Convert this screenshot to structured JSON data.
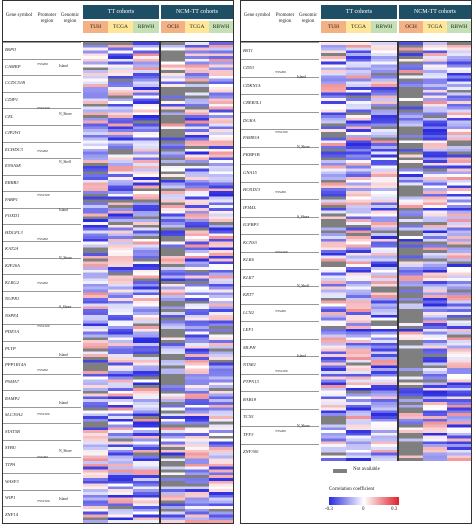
{
  "header": {
    "gene_symbol": "Gene symbol",
    "promoter_region": "Promoter region",
    "genomic_region": "Genomic region",
    "group_tt": "TT cohorts",
    "group_ncm": "NCM-TT cohorts",
    "cohorts_tt": [
      "TUH",
      "TCGA",
      "RBWH"
    ],
    "cohorts_ncm": [
      "OCH",
      "TCGA",
      "RBWH"
    ],
    "cohort_colors": [
      "#f4b183",
      "#ffe699",
      "#c5e0b4"
    ],
    "group_color": "#1e4f64"
  },
  "left_panel": {
    "genes": [
      "BSPO",
      "CAMKP",
      "CCDC51B",
      "CDIP1",
      "CEL",
      "CIP2W1",
      "ECHDC3",
      "ENSASE",
      "ERRB3",
      "FABP1",
      "FOXD1",
      "HDGFL3",
      "KAT2A",
      "KIF26A",
      "KLRG2",
      "NUPR1",
      "NSPE4",
      "PDE3A",
      "PLTP",
      "PPP1R14A",
      "PSMA7",
      "RAMP2",
      "SLC39A2",
      "STAT5B",
      "SYBU",
      "TTPA",
      "WASF3",
      "WIP1",
      "ZNF14"
    ],
    "promoter_labels": [
      "TSS200",
      "TSS1500",
      "TSS200",
      "TSS1500",
      "TSS200",
      "TSS200",
      "TSS1500",
      "TSS200",
      "TSS1500",
      "TSS200",
      "TSS1500"
    ],
    "region_labels": [
      "Island",
      "N_Shore",
      "N_Shelf",
      "Island",
      "N_Shore",
      "S_Shore",
      "Island",
      "Island",
      "N_Shore",
      "Island"
    ]
  },
  "right_panel": {
    "genes": [
      "BST1",
      "CD53",
      "CDKN1A",
      "CREB3L1",
      "DGKA",
      "FAM83A",
      "FKBP1B",
      "GNA15",
      "HOXD13",
      "IFI44L",
      "IGFBP3",
      "KCNS3",
      "KLK6",
      "KLK7",
      "KRT7",
      "LCN2",
      "LEF1",
      "MLPH",
      "NTSR1",
      "PTPN13",
      "RAB18",
      "TCN1",
      "TFF3",
      "ZNF300"
    ],
    "promoter_labels": [
      "TSS200",
      "TSS1500",
      "TSS200",
      "TSS1500",
      "TSS200",
      "TSS1500",
      "TSS200"
    ],
    "region_labels": [
      "Island",
      "N_Shore",
      "S_Shore",
      "N_Shelf",
      "Island",
      "N_Shore"
    ]
  },
  "legend": {
    "not_available": "Not available",
    "na_color": "#7f7f7f",
    "scale_title": "Correlation coefficient",
    "tick_min": "-0.3",
    "tick_mid": "0",
    "tick_max": "0.3",
    "color_min": "#2a2ae0",
    "color_mid": "#ffffff",
    "color_max": "#e0202a"
  }
}
